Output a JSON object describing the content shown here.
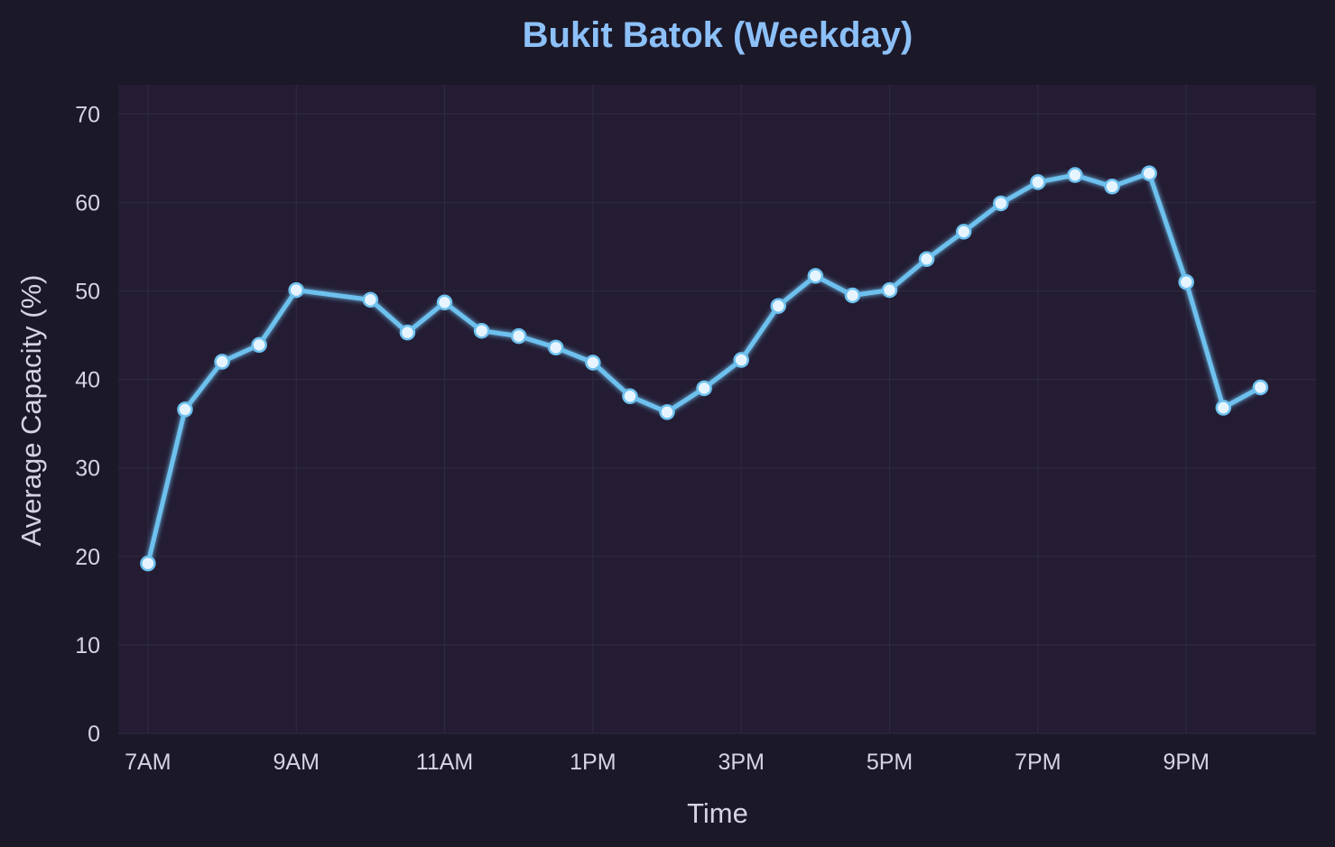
{
  "chart_data": {
    "type": "line",
    "title": "Bukit Batok (Weekday)",
    "xlabel": "Time",
    "ylabel": "Average Capacity (%)",
    "x_unit": "hour of day",
    "xlim": [
      6.6,
      22.75
    ],
    "ylim": [
      0,
      73.3
    ],
    "x_ticks": [
      {
        "value": 7,
        "label": "7AM"
      },
      {
        "value": 9,
        "label": "9AM"
      },
      {
        "value": 11,
        "label": "11AM"
      },
      {
        "value": 13,
        "label": "1PM"
      },
      {
        "value": 15,
        "label": "3PM"
      },
      {
        "value": 17,
        "label": "5PM"
      },
      {
        "value": 19,
        "label": "7PM"
      },
      {
        "value": 21,
        "label": "9PM"
      }
    ],
    "y_ticks": [
      0,
      10,
      20,
      30,
      40,
      50,
      60,
      70
    ],
    "grid": true,
    "series": [
      {
        "x": [
          7,
          7.5,
          8,
          8.5,
          9,
          10,
          10.5,
          11,
          11.5,
          12,
          12.5,
          13,
          13.5,
          14,
          14.5,
          15,
          15.5,
          16,
          16.5,
          17,
          17.5,
          18,
          18.5,
          19,
          19.5,
          20,
          20.5,
          21,
          21.5,
          22
        ],
        "values": [
          19.2,
          36.6,
          42.0,
          43.9,
          50.1,
          49.0,
          45.3,
          48.7,
          45.5,
          44.9,
          43.6,
          41.9,
          38.1,
          36.3,
          39.0,
          42.2,
          48.3,
          51.7,
          49.5,
          50.1,
          53.6,
          56.7,
          59.9,
          62.3,
          63.1,
          61.8,
          63.3,
          51.0,
          36.8,
          39.1
        ]
      }
    ]
  },
  "colors": {
    "background": "#1b1828",
    "plot_background": "#231c33",
    "grid": "#2f2940",
    "line": "#6ec1ee",
    "marker_fill": "#e6f4ff",
    "title": "#8cc0f8",
    "text": "#d6d3e4"
  }
}
